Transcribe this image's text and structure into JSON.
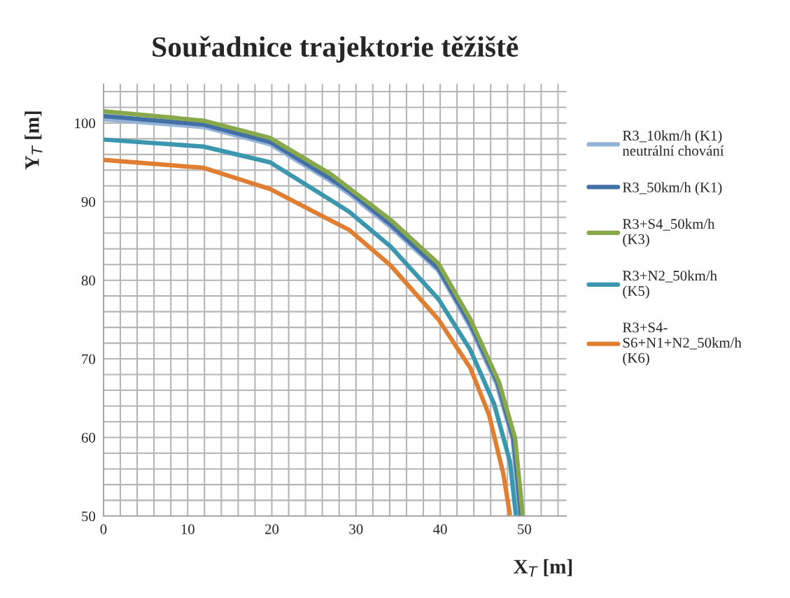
{
  "chart_data": {
    "type": "line",
    "title": "Souřadnice trajektorie těžiště",
    "xlabel": "X$_{T}$ [m]",
    "ylabel": "Y$_{T}$ [m]",
    "xlim": [
      0,
      55
    ],
    "ylim": [
      50,
      105
    ],
    "xticks": [
      0,
      10,
      20,
      30,
      40,
      50
    ],
    "yticks": [
      50,
      60,
      70,
      80,
      90,
      100
    ],
    "grid": true,
    "legend": "right",
    "marker": "none",
    "line_style": "solid",
    "series": [
      {
        "name": "R3_10km/h (K1)\nneutrální chování",
        "color": "#95b3d7",
        "x": [
          0,
          11.9,
          19.8,
          27.0,
          29.2,
          34.1,
          39.8,
          43.6,
          46.7,
          48.6,
          49.5
        ],
        "values": [
          100.5,
          99.5,
          97.3,
          92.6,
          91.0,
          86.8,
          81.2,
          74.0,
          66.8,
          59.8,
          50.1
        ]
      },
      {
        "name": "R3_50km/h (K1)",
        "color": "#4470a8",
        "x": [
          0,
          11.9,
          19.8,
          27.0,
          29.2,
          34.1,
          39.8,
          43.6,
          46.8,
          48.7,
          49.6
        ],
        "values": [
          100.9,
          99.8,
          97.6,
          92.9,
          91.3,
          87.1,
          81.5,
          74.4,
          67.0,
          59.9,
          50.1
        ]
      },
      {
        "name": "R3+S4_50km/h\n(K3)",
        "color": "#87a84b",
        "x": [
          0,
          11.9,
          19.8,
          27.0,
          29.2,
          34.1,
          39.8,
          43.6,
          47.0,
          48.9,
          49.8
        ],
        "values": [
          101.5,
          100.3,
          98.1,
          93.5,
          91.7,
          87.7,
          82.1,
          75.0,
          67.0,
          59.9,
          50.1
        ]
      },
      {
        "name": "R3+N2_50km/h\n(K5)",
        "color": "#3a97ae",
        "x": [
          0,
          11.9,
          19.8,
          27.0,
          29.2,
          34.1,
          39.8,
          43.6,
          46.4,
          48.3,
          49.0
        ],
        "values": [
          97.9,
          97.0,
          95.0,
          90.2,
          88.7,
          84.3,
          77.6,
          71.1,
          64.3,
          56.9,
          50.1
        ]
      },
      {
        "name": "R3+S4-\nS6+N1+N2_50km/h\n(K6)",
        "color": "#e07e32",
        "x": [
          0,
          11.9,
          19.8,
          27.0,
          29.2,
          34.1,
          39.8,
          43.6,
          45.8,
          47.5,
          48.3
        ],
        "values": [
          95.3,
          94.3,
          91.6,
          87.6,
          86.4,
          81.9,
          75.0,
          68.8,
          62.9,
          55.4,
          50.1
        ]
      }
    ]
  }
}
